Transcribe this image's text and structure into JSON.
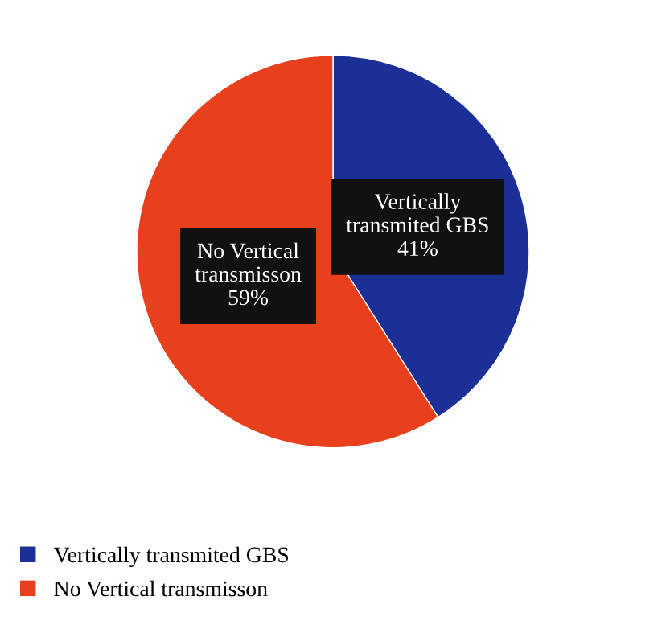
{
  "chart_data": {
    "type": "pie",
    "categories": [
      "Vertically transmited GBS",
      "No Vertical transmisson"
    ],
    "values": [
      41,
      59
    ],
    "colors": [
      "#1c2f96",
      "#e8401c"
    ],
    "value_labels": [
      "41%",
      "59%"
    ],
    "legend": "bottom left"
  }
}
